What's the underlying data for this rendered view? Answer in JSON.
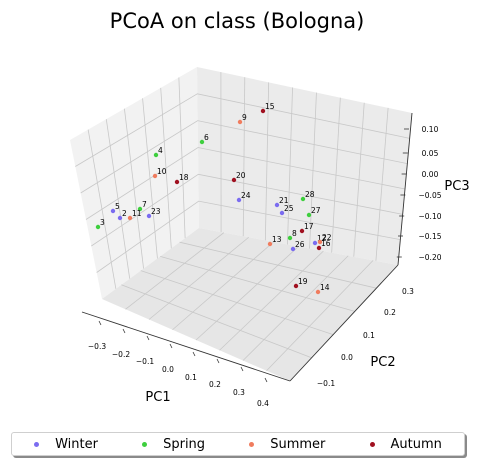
{
  "chart_data": {
    "type": "scatter",
    "title": "PCoA on class (Bologna)",
    "xlabel": "PC1",
    "ylabel": "PC2",
    "zlabel": "PC3",
    "x_ticks": [
      "−0.3",
      "−0.2",
      "−0.1",
      "0.0",
      "0.1",
      "0.2",
      "0.3",
      "0.4"
    ],
    "y_ticks": [
      "−0.1",
      "0.0",
      "0.1",
      "0.2",
      "0.3"
    ],
    "z_ticks": [
      "0.10",
      "0.05",
      "0.00",
      "−0.05",
      "−0.10",
      "−0.15",
      "−0.20"
    ],
    "grid": true,
    "legend_position": "bottom",
    "series": [
      {
        "name": "Winter",
        "color": "#7b6cf0",
        "points": [
          {
            "label": "2"
          },
          {
            "label": "5"
          },
          {
            "label": "12"
          },
          {
            "label": "21"
          },
          {
            "label": "23"
          },
          {
            "label": "24"
          },
          {
            "label": "25"
          },
          {
            "label": "26"
          }
        ]
      },
      {
        "name": "Spring",
        "color": "#3ecf3e",
        "points": [
          {
            "label": "3"
          },
          {
            "label": "4"
          },
          {
            "label": "6"
          },
          {
            "label": "7"
          },
          {
            "label": "8"
          },
          {
            "label": "27"
          },
          {
            "label": "28"
          }
        ]
      },
      {
        "name": "Summer",
        "color": "#f07c5e",
        "points": [
          {
            "label": "9"
          },
          {
            "label": "10"
          },
          {
            "label": "11"
          },
          {
            "label": "13"
          },
          {
            "label": "14"
          },
          {
            "label": "22"
          }
        ]
      },
      {
        "name": "Autumn",
        "color": "#a01020",
        "points": [
          {
            "label": "15"
          },
          {
            "label": "16"
          },
          {
            "label": "17"
          },
          {
            "label": "18"
          },
          {
            "label": "19"
          },
          {
            "label": "20"
          }
        ]
      }
    ]
  }
}
